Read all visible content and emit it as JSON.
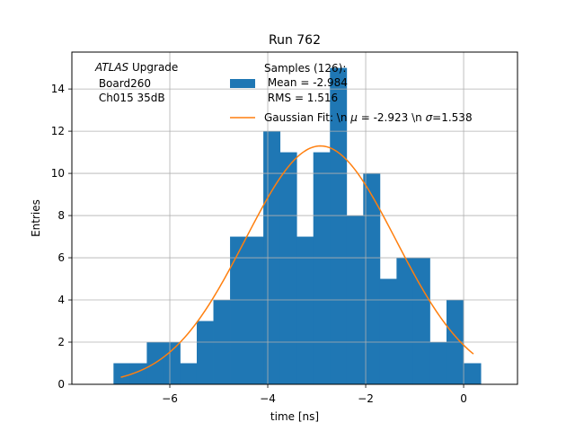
{
  "chart_data": {
    "type": "bar",
    "title": "Run 762",
    "xlabel": "time [ns]",
    "ylabel": "Entries",
    "xlim": [
      -8.0,
      1.1
    ],
    "ylim": [
      0,
      15.75
    ],
    "xticks": [
      -6,
      -4,
      -2,
      0
    ],
    "yticks": [
      0,
      2,
      4,
      6,
      8,
      10,
      12,
      14
    ],
    "grid": true,
    "colors": {
      "hist": "#1f77b4",
      "fit": "#ff7f0e",
      "grid": "#b0b0b0"
    },
    "annotation": {
      "line1_italic": "ATLAS",
      "line1_rest": " Upgrade",
      "line2": " Board260",
      "line3": " Ch015 35dB"
    },
    "legend": {
      "placement": "upper-center",
      "hist_lines": [
        "Samples (126):",
        " Mean = -2.984",
        " RMS = 1.516"
      ],
      "fit_label_a": "Gaussian Fit: \\n ",
      "fit_mu": "μ",
      "fit_label_b": " = -2.923 \\n ",
      "fit_sigma": "σ",
      "fit_label_c": "=1.538"
    },
    "histogram": {
      "bin_edges": [
        -7.15,
        -6.81,
        -6.47,
        -6.13,
        -5.79,
        -5.45,
        -5.11,
        -4.77,
        -4.43,
        -4.09,
        -3.75,
        -3.41,
        -3.07,
        -2.73,
        -2.39,
        -2.05,
        -1.71,
        -1.37,
        -1.03,
        -0.69,
        -0.35,
        0.0,
        0.35
      ],
      "counts": [
        1,
        1,
        2,
        2,
        1,
        3,
        4,
        7,
        7,
        12,
        11,
        7,
        11,
        15,
        8,
        10,
        5,
        6,
        6,
        2,
        4,
        1
      ]
    },
    "series": [
      {
        "type": "line",
        "mu": -2.923,
        "sigma": 1.538,
        "amplitude": 11.3,
        "x_range": [
          -7.0,
          0.2
        ]
      }
    ]
  }
}
